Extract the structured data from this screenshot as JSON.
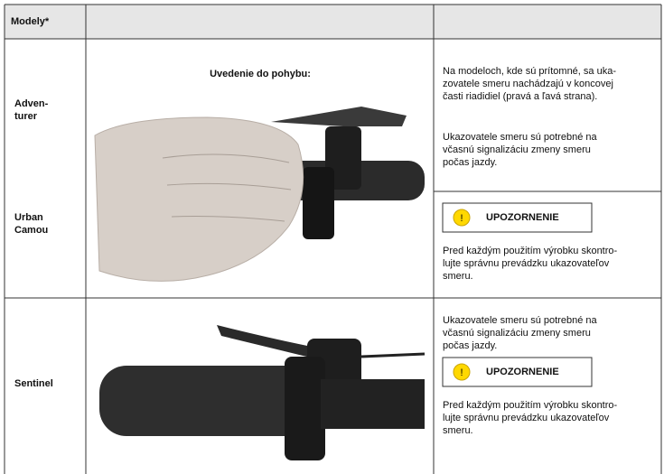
{
  "table": {
    "header": {
      "models": "Modely*"
    },
    "rows": [
      {
        "models": [
          [
            "Adven-",
            "turer"
          ],
          [
            "Urban",
            "Camou"
          ]
        ],
        "caption": "Uvedenie do pohybu:",
        "paragraphs": [
          [
            "Na modeloch, kde sú prítomné, sa uka-",
            "zovatele smeru nachádzajú v koncovej",
            "časti riadidiel (pravá a ľavá strana)."
          ],
          [
            "Ukazovatele smeru sú potrebné na",
            "včasnú signalizáciu zmeny smeru",
            "počas jazdy."
          ]
        ],
        "warning": {
          "title": "UPOZORNENIE",
          "lines": [
            "Pred každým použitím výrobku skontro-",
            "lujte správnu prevádzku ukazovateľov",
            "smeru."
          ]
        }
      },
      {
        "models": [
          [
            "Sentinel"
          ]
        ],
        "paragraphs": [
          [
            "Ukazovatele smeru sú potrebné na",
            "včasnú signalizáciu zmeny smeru",
            "počas jazdy."
          ]
        ],
        "warning": {
          "title": "UPOZORNENIE",
          "lines": [
            "Pred každým použitím výrobku skontro-",
            "lujte správnu prevádzku ukazovateľov",
            "smeru."
          ]
        }
      }
    ]
  }
}
